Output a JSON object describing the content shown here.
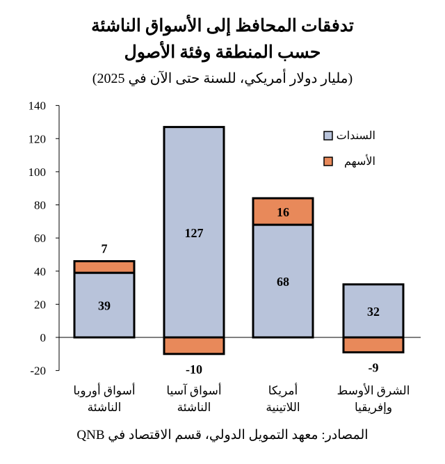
{
  "chart_data": {
    "type": "bar",
    "stacked": true,
    "title": "تدفقات المحافظ إلى الأسواق الناشئة",
    "title_line2": "حسب المنطقة وفئة الأصول",
    "subtitle": "(مليار دولار أمريكي، للسنة حتى الآن في 2025)",
    "categories": [
      [
        "أسواق أوروبا",
        "الناشئة"
      ],
      [
        "أسواق آسيا",
        "الناشئة"
      ],
      [
        "أمريكا",
        "اللاتينية"
      ],
      [
        "الشرق الأوسط",
        "وإفريقيا"
      ]
    ],
    "series": [
      {
        "name": "السندات",
        "color": "#b8c3da",
        "values": [
          39,
          127,
          68,
          32
        ]
      },
      {
        "name": "الأسهم",
        "color": "#e8895a",
        "values": [
          7,
          -10,
          16,
          -9
        ]
      }
    ],
    "data_labels": {
      "bonds": [
        "39",
        "127",
        "68",
        "32"
      ],
      "equities": [
        "7",
        "-10",
        "16",
        "-9"
      ]
    },
    "ylim": [
      -20,
      140
    ],
    "yticks": [
      "-20",
      "0",
      "20",
      "40",
      "60",
      "80",
      "100",
      "120",
      "140"
    ],
    "legend_position": "top-right",
    "grid": false,
    "source": "المصادر: معهد التمويل الدولي، قسم الاقتصاد في QNB"
  }
}
